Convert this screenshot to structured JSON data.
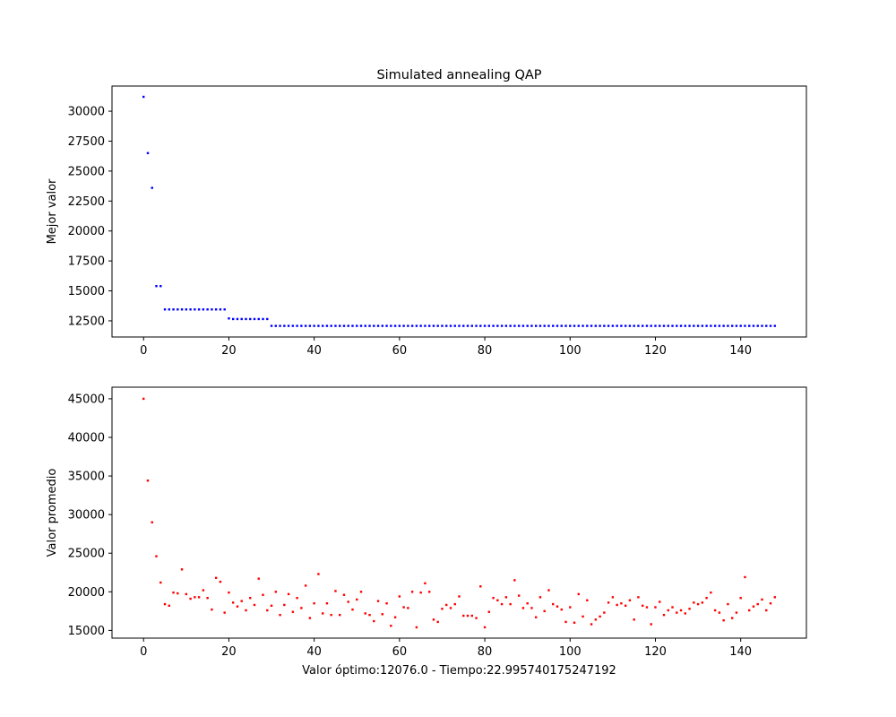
{
  "chart_data": [
    {
      "type": "scatter",
      "title": "Simulated annealing QAP",
      "xlabel": "",
      "ylabel": "Mejor valor",
      "xlim": [
        -7.4,
        155.4
      ],
      "ylim": [
        11150,
        32100
      ],
      "xticks": [
        0,
        20,
        40,
        60,
        80,
        100,
        120,
        140
      ],
      "yticks": [
        12500,
        15000,
        17500,
        20000,
        22500,
        25000,
        27500,
        30000
      ],
      "tick_labels_x": [
        "0",
        "20",
        "40",
        "60",
        "80",
        "100",
        "120",
        "140"
      ],
      "tick_labels_y": [
        "12500",
        "15000",
        "17500",
        "20000",
        "22500",
        "25000",
        "27500",
        "30000"
      ],
      "grid": false,
      "color": "#0000ff",
      "x": [
        0,
        1,
        2,
        3,
        4,
        5,
        6,
        7,
        8,
        9,
        10,
        11,
        12,
        13,
        14,
        15,
        16,
        17,
        18,
        19,
        20,
        21,
        22,
        23,
        24,
        25,
        26,
        27,
        28,
        29,
        30,
        31,
        32,
        33,
        34,
        35,
        36,
        37,
        38,
        39,
        40,
        41,
        42,
        43,
        44,
        45,
        46,
        47,
        48,
        49,
        50,
        51,
        52,
        53,
        54,
        55,
        56,
        57,
        58,
        59,
        60,
        61,
        62,
        63,
        64,
        65,
        66,
        67,
        68,
        69,
        70,
        71,
        72,
        73,
        74,
        75,
        76,
        77,
        78,
        79,
        80,
        81,
        82,
        83,
        84,
        85,
        86,
        87,
        88,
        89,
        90,
        91,
        92,
        93,
        94,
        95,
        96,
        97,
        98,
        99,
        100,
        101,
        102,
        103,
        104,
        105,
        106,
        107,
        108,
        109,
        110,
        111,
        112,
        113,
        114,
        115,
        116,
        117,
        118,
        119,
        120,
        121,
        122,
        123,
        124,
        125,
        126,
        127,
        128,
        129,
        130,
        131,
        132,
        133,
        134,
        135,
        136,
        137,
        138,
        139,
        140,
        141,
        142,
        143,
        144,
        145,
        146,
        147,
        148
      ],
      "y": [
        31200,
        26500,
        23600,
        15400,
        15400,
        13450,
        13450,
        13450,
        13450,
        13450,
        13450,
        13450,
        13450,
        13450,
        13450,
        13450,
        13450,
        13450,
        13450,
        13450,
        12700,
        12650,
        12650,
        12650,
        12650,
        12650,
        12650,
        12650,
        12650,
        12650,
        12076,
        12076,
        12076,
        12076,
        12076,
        12076,
        12076,
        12076,
        12076,
        12076,
        12076,
        12076,
        12076,
        12076,
        12076,
        12076,
        12076,
        12076,
        12076,
        12076,
        12076,
        12076,
        12076,
        12076,
        12076,
        12076,
        12076,
        12076,
        12076,
        12076,
        12076,
        12076,
        12076,
        12076,
        12076,
        12076,
        12076,
        12076,
        12076,
        12076,
        12076,
        12076,
        12076,
        12076,
        12076,
        12076,
        12076,
        12076,
        12076,
        12076,
        12076,
        12076,
        12076,
        12076,
        12076,
        12076,
        12076,
        12076,
        12076,
        12076,
        12076,
        12076,
        12076,
        12076,
        12076,
        12076,
        12076,
        12076,
        12076,
        12076,
        12076,
        12076,
        12076,
        12076,
        12076,
        12076,
        12076,
        12076,
        12076,
        12076,
        12076,
        12076,
        12076,
        12076,
        12076,
        12076,
        12076,
        12076,
        12076,
        12076,
        12076,
        12076,
        12076,
        12076,
        12076,
        12076,
        12076,
        12076,
        12076,
        12076,
        12076,
        12076,
        12076,
        12076,
        12076,
        12076,
        12076,
        12076,
        12076,
        12076,
        12076,
        12076,
        12076,
        12076,
        12076,
        12076,
        12076,
        12076,
        12076
      ]
    },
    {
      "type": "scatter",
      "title": "",
      "xlabel": "Valor óptimo:12076.0 - Tiempo:22.995740175247192",
      "ylabel": "Valor promedio",
      "xlim": [
        -7.4,
        155.4
      ],
      "ylim": [
        14000,
        46500
      ],
      "xticks": [
        0,
        20,
        40,
        60,
        80,
        100,
        120,
        140
      ],
      "yticks": [
        15000,
        20000,
        25000,
        30000,
        35000,
        40000,
        45000
      ],
      "tick_labels_x": [
        "0",
        "20",
        "40",
        "60",
        "80",
        "100",
        "120",
        "140"
      ],
      "tick_labels_y": [
        "15000",
        "20000",
        "25000",
        "30000",
        "35000",
        "40000",
        "45000"
      ],
      "grid": false,
      "color": "#ff0000",
      "x": [
        0,
        1,
        2,
        3,
        4,
        5,
        6,
        7,
        8,
        9,
        10,
        11,
        12,
        13,
        14,
        15,
        16,
        17,
        18,
        19,
        20,
        21,
        22,
        23,
        24,
        25,
        26,
        27,
        28,
        29,
        30,
        31,
        32,
        33,
        34,
        35,
        36,
        37,
        38,
        39,
        40,
        41,
        42,
        43,
        44,
        45,
        46,
        47,
        48,
        49,
        50,
        51,
        52,
        53,
        54,
        55,
        56,
        57,
        58,
        59,
        60,
        61,
        62,
        63,
        64,
        65,
        66,
        67,
        68,
        69,
        70,
        71,
        72,
        73,
        74,
        75,
        76,
        77,
        78,
        79,
        80,
        81,
        82,
        83,
        84,
        85,
        86,
        87,
        88,
        89,
        90,
        91,
        92,
        93,
        94,
        95,
        96,
        97,
        98,
        99,
        100,
        101,
        102,
        103,
        104,
        105,
        106,
        107,
        108,
        109,
        110,
        111,
        112,
        113,
        114,
        115,
        116,
        117,
        118,
        119,
        120,
        121,
        122,
        123,
        124,
        125,
        126,
        127,
        128,
        129,
        130,
        131,
        132,
        133,
        134,
        135,
        136,
        137,
        138,
        139,
        140,
        141,
        142,
        143,
        144,
        145,
        146,
        147,
        148
      ],
      "y": [
        45000,
        34400,
        29000,
        24600,
        21200,
        18400,
        18200,
        19900,
        19800,
        22900,
        19700,
        19100,
        19300,
        19300,
        20200,
        19200,
        17700,
        21800,
        21300,
        17300,
        19900,
        18600,
        18100,
        18800,
        17600,
        19200,
        18300,
        21700,
        19600,
        17600,
        18200,
        20000,
        17000,
        18300,
        19700,
        17400,
        19200,
        17900,
        20800,
        16600,
        18500,
        22300,
        17200,
        18500,
        17000,
        20100,
        17000,
        19600,
        18700,
        17700,
        19000,
        20000,
        17200,
        17000,
        16200,
        18800,
        17100,
        18500,
        15600,
        16700,
        19400,
        18000,
        17900,
        20000,
        15400,
        19900,
        21100,
        20000,
        16400,
        16100,
        17800,
        18300,
        17900,
        18400,
        19400,
        16900,
        16900,
        16900,
        16600,
        20700,
        15400,
        17400,
        19200,
        18900,
        18400,
        19300,
        18400,
        21500,
        19500,
        17900,
        18500,
        17900,
        16700,
        19300,
        17500,
        20200,
        18400,
        18100,
        17700,
        16100,
        18000,
        16000,
        19700,
        16800,
        18900,
        15800,
        16400,
        16800,
        17300,
        18600,
        19300,
        18300,
        18500,
        18200,
        18900,
        16400,
        19300,
        18200,
        18000,
        15800,
        18000,
        18700,
        17000,
        17600,
        18000,
        17300,
        17600,
        17200,
        17800,
        18600,
        18400,
        18600,
        19200,
        19900,
        17600,
        17300,
        16300,
        18400,
        16600,
        17300,
        19200,
        21900,
        17600,
        18100,
        18400,
        19000,
        17600,
        18500,
        19300
      ]
    }
  ]
}
